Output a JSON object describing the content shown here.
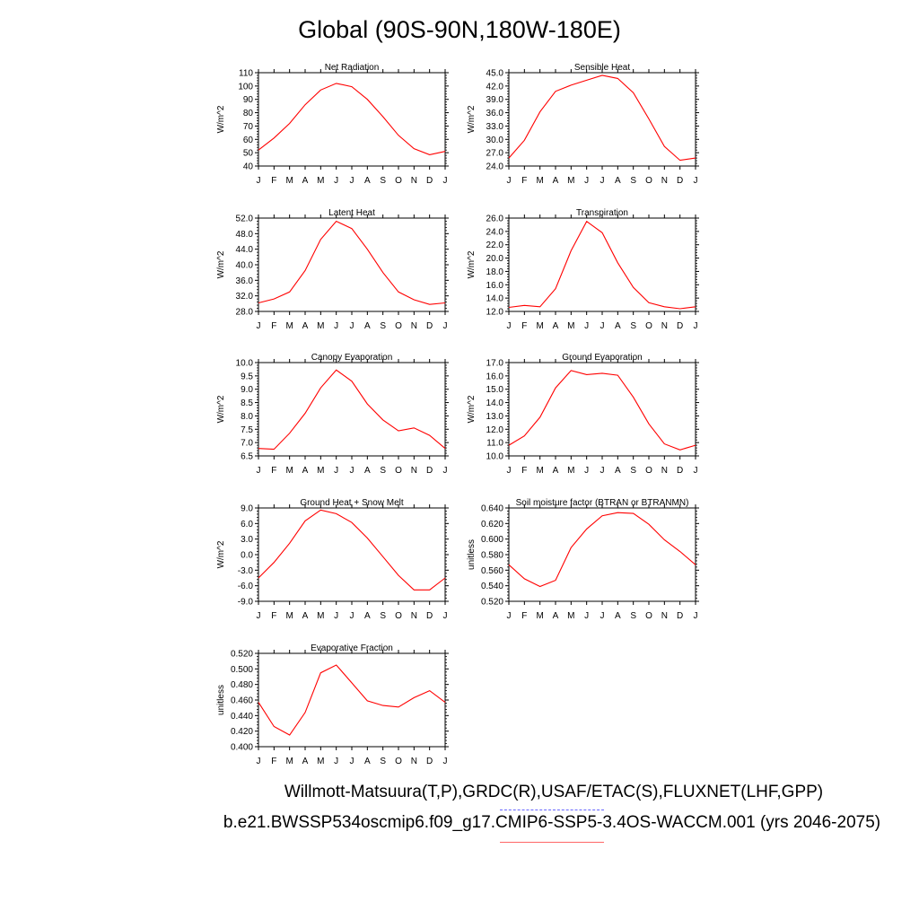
{
  "title": "Global (90S-90N,180W-180E)",
  "footer": {
    "obs_label": "Willmott-Matsuura(T,P),GRDC(R),USAF/ETAC(S),FLUXNET(LHF,GPP)",
    "model_label": "b.e21.BWSSP534oscmip6.f09_g17.CMIP6-SSP5-3.4OS-WACCM.001 (yrs 2046-2075)"
  },
  "colors": {
    "line": "#ff0000",
    "obs_legend": "#6666ff",
    "model_legend": "#ff6666"
  },
  "months": [
    "J",
    "F",
    "M",
    "A",
    "M",
    "J",
    "J",
    "A",
    "S",
    "O",
    "N",
    "D",
    "J"
  ],
  "chart_data": [
    {
      "type": "line",
      "title": "Net Radiation",
      "ylabel": "W/m^2",
      "ylim": [
        40,
        110
      ],
      "yticks": [
        "40",
        "50",
        "60",
        "70",
        "80",
        "90",
        "100",
        "110"
      ],
      "tick_values": [
        40,
        50,
        60,
        70,
        80,
        90,
        100,
        110
      ],
      "values": [
        52,
        61,
        72,
        86,
        97,
        102,
        99.5,
        90,
        77,
        63,
        53,
        48.5,
        51
      ]
    },
    {
      "type": "line",
      "title": "Sensible Heat",
      "ylabel": "W/m^2",
      "ylim": [
        24,
        45
      ],
      "yticks": [
        "24.0",
        "27.0",
        "30.0",
        "33.0",
        "36.0",
        "39.0",
        "42.0",
        "45.0"
      ],
      "tick_values": [
        24,
        27,
        30,
        33,
        36,
        39,
        42,
        45
      ],
      "values": [
        25.8,
        29.8,
        36.2,
        40.8,
        42.2,
        43.3,
        44.4,
        43.7,
        40.5,
        34.6,
        28.4,
        25.3,
        25.8
      ]
    },
    {
      "type": "line",
      "title": "Latent Heat",
      "ylabel": "W/m^2",
      "ylim": [
        28,
        52
      ],
      "yticks": [
        "28.0",
        "32.0",
        "36.0",
        "40.0",
        "44.0",
        "48.0",
        "52.0"
      ],
      "tick_values": [
        28,
        32,
        36,
        40,
        44,
        48,
        52
      ],
      "values": [
        30.2,
        31.2,
        33.0,
        38.5,
        46.5,
        51.2,
        49.3,
        44.0,
        38.0,
        33.0,
        31.0,
        29.8,
        30.2
      ]
    },
    {
      "type": "line",
      "title": "Transpiration",
      "ylabel": "W/m^2",
      "ylim": [
        12,
        26
      ],
      "yticks": [
        "12.0",
        "14.0",
        "16.0",
        "18.0",
        "20.0",
        "22.0",
        "24.0",
        "26.0"
      ],
      "tick_values": [
        12,
        14,
        16,
        18,
        20,
        22,
        24,
        26
      ],
      "values": [
        12.6,
        12.9,
        12.7,
        15.4,
        21.1,
        25.5,
        23.8,
        19.3,
        15.6,
        13.3,
        12.7,
        12.4,
        12.7
      ]
    },
    {
      "type": "line",
      "title": "Canopy Evaporation",
      "ylabel": "W/m^2",
      "ylim": [
        6.5,
        10
      ],
      "yticks": [
        "6.5",
        "7.0",
        "7.5",
        "8.0",
        "8.5",
        "9.0",
        "9.5",
        "10.0"
      ],
      "tick_values": [
        6.5,
        7,
        7.5,
        8,
        8.5,
        9,
        9.5,
        10
      ],
      "values": [
        6.78,
        6.75,
        7.35,
        8.1,
        9.05,
        9.72,
        9.3,
        8.45,
        7.85,
        7.44,
        7.55,
        7.27,
        6.78
      ]
    },
    {
      "type": "line",
      "title": "Ground Evaporation",
      "ylabel": "W/m^2",
      "ylim": [
        10,
        17
      ],
      "yticks": [
        "10.0",
        "11.0",
        "12.0",
        "13.0",
        "14.0",
        "15.0",
        "16.0",
        "17.0"
      ],
      "tick_values": [
        10,
        11,
        12,
        13,
        14,
        15,
        16,
        17
      ],
      "values": [
        10.8,
        11.5,
        12.9,
        15.1,
        16.4,
        16.1,
        16.2,
        16.05,
        14.4,
        12.4,
        10.9,
        10.45,
        10.8
      ]
    },
    {
      "type": "line",
      "title": "Ground Heat + Snow Melt",
      "ylabel": "W/m^2",
      "ylim": [
        -9,
        9
      ],
      "yticks": [
        "-9.0",
        "-6.0",
        "-3.0",
        "0.0",
        "3.0",
        "6.0",
        "9.0"
      ],
      "tick_values": [
        -9,
        -6,
        -3,
        0,
        3,
        6,
        9
      ],
      "values": [
        -4.5,
        -1.5,
        2.2,
        6.5,
        8.6,
        7.9,
        6.2,
        3.2,
        -0.4,
        -4.0,
        -6.8,
        -6.8,
        -4.5
      ]
    },
    {
      "type": "line",
      "title": "Soil moisture factor (BTRAN or BTRANMN)",
      "ylabel": "unitless",
      "ylim": [
        0.52,
        0.64
      ],
      "yticks": [
        "0.520",
        "0.540",
        "0.560",
        "0.580",
        "0.600",
        "0.620",
        "0.640"
      ],
      "tick_values": [
        0.52,
        0.54,
        0.56,
        0.58,
        0.6,
        0.62,
        0.64
      ],
      "values": [
        0.567,
        0.549,
        0.539,
        0.547,
        0.589,
        0.613,
        0.63,
        0.634,
        0.633,
        0.619,
        0.599,
        0.584,
        0.567
      ]
    },
    {
      "type": "line",
      "title": "Evaporative Fraction",
      "ylabel": "unitless",
      "ylim": [
        0.4,
        0.52
      ],
      "yticks": [
        "0.400",
        "0.420",
        "0.440",
        "0.460",
        "0.480",
        "0.500",
        "0.520"
      ],
      "tick_values": [
        0.4,
        0.42,
        0.44,
        0.46,
        0.48,
        0.5,
        0.52
      ],
      "values": [
        0.457,
        0.426,
        0.415,
        0.444,
        0.495,
        0.505,
        0.482,
        0.459,
        0.453,
        0.451,
        0.463,
        0.472,
        0.457
      ]
    }
  ]
}
